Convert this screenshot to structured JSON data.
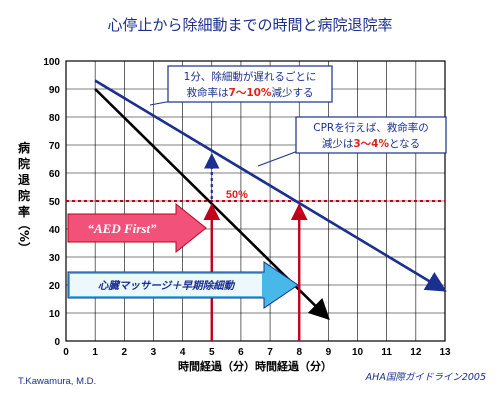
{
  "chart_data": {
    "type": "line",
    "title": "心停止から除細動までの時間と病院退院率",
    "xlabel": "時間経過（分）時間経過（分）",
    "ylabel": [
      "病",
      "院",
      "退",
      "院",
      "率",
      "（%）"
    ],
    "xlim": [
      0,
      13
    ],
    "ylim": [
      0,
      100
    ],
    "x_ticks": [
      0,
      1,
      2,
      3,
      4,
      5,
      6,
      7,
      8,
      9,
      10,
      11,
      12,
      13
    ],
    "y_ticks": [
      0,
      10,
      20,
      30,
      40,
      50,
      60,
      70,
      80,
      90,
      100
    ],
    "grid": true,
    "series": [
      {
        "label": "1分、除細動が遅れるごとに救命率は7〜10%減少する",
        "color": "#000000",
        "points": [
          [
            1,
            90
          ],
          [
            9,
            8
          ]
        ]
      },
      {
        "label": "CPRを行えば、救命率の減少は3〜4%となる",
        "color": "#1b2f8f",
        "points": [
          [
            1,
            93
          ],
          [
            13,
            18
          ]
        ]
      }
    ],
    "reference_line": {
      "y": 50,
      "label": "50%",
      "color": "#c0001a"
    },
    "markers": [
      {
        "x": 5,
        "y": 50,
        "color": "#c0001a"
      },
      {
        "x": 8,
        "y": 50,
        "color": "#c0001a"
      },
      {
        "x": 5,
        "from_y": 50,
        "to_y": 68,
        "color": "#1b2f8f",
        "style": "dashed"
      }
    ],
    "callouts": {
      "no_cpr": {
        "line1": "1分、除細動が遅れるごとに",
        "line2_pre": "救命率は",
        "line2_red": "7〜10%",
        "line2_post": "減少する"
      },
      "cpr": {
        "line1": "CPRを行えば、救命率の",
        "line2_pre": "減少は",
        "line2_red": "3〜4%",
        "line2_post": "となる"
      }
    },
    "arrows": {
      "aed_first": "“AED First”",
      "cpr_defib": "心臓マッサージ＋早期除細動"
    },
    "footer": {
      "left": "T.Kawamura, M.D.",
      "right": "AHA国際ガイドライン2005"
    },
    "colors": {
      "title": "#1b2f8f",
      "no_cpr_line": "#000000",
      "cpr_line": "#1b2f8f",
      "reference": "#c0001a",
      "aed_arrow": "#f2527a",
      "cpr_arrow": "#47b8e8"
    }
  }
}
